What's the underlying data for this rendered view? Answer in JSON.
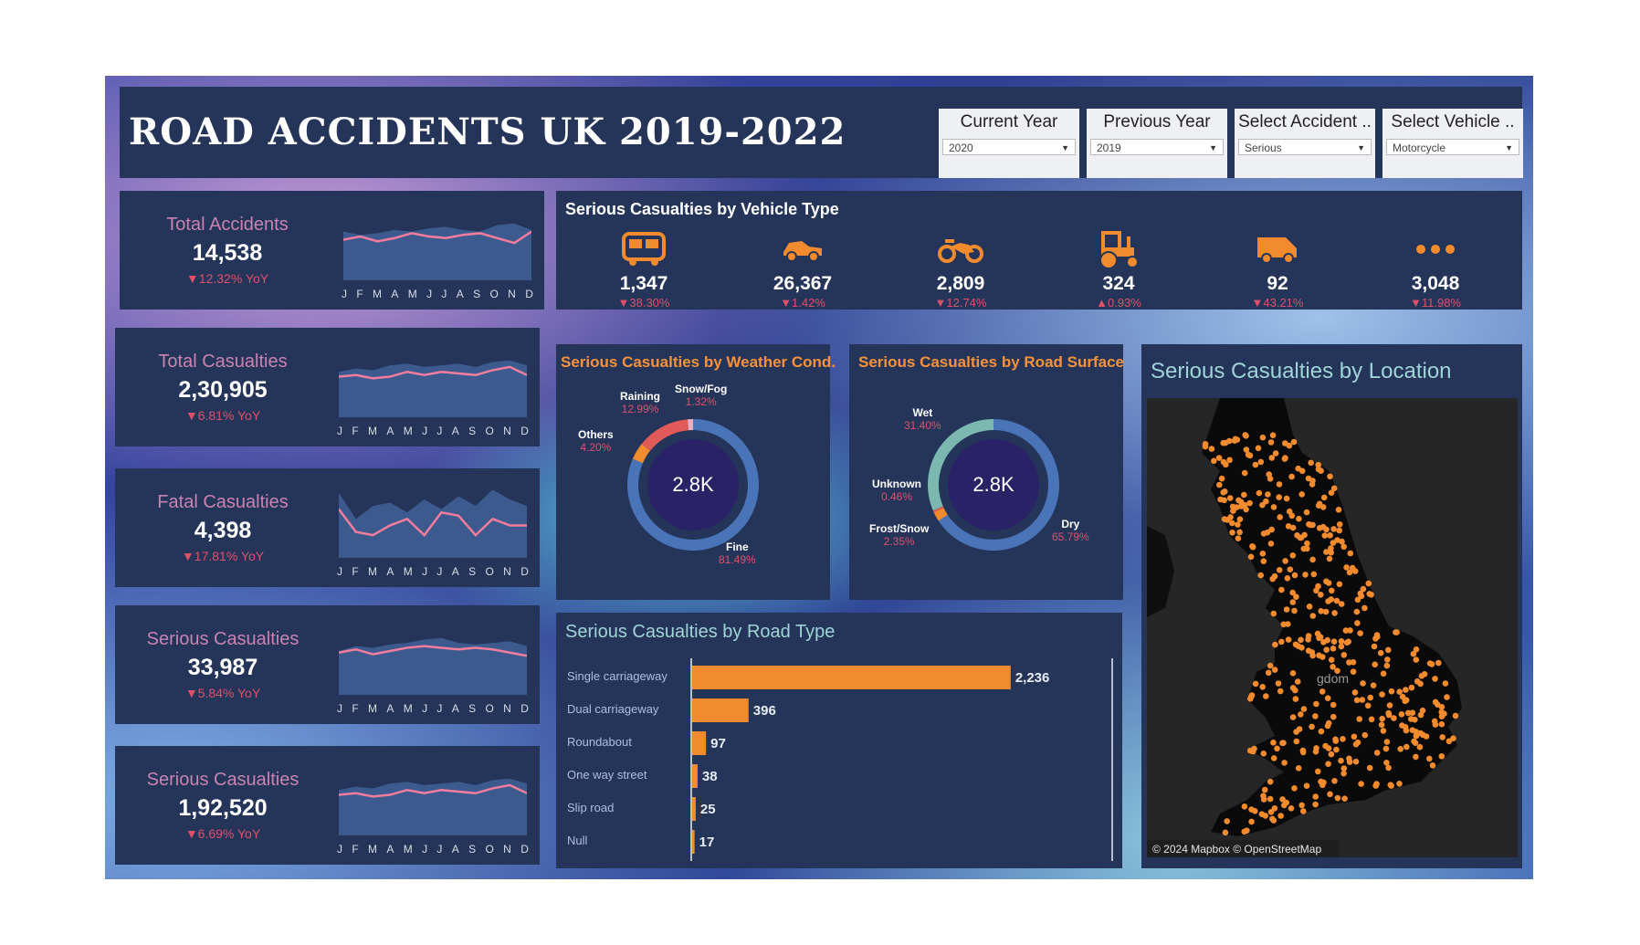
{
  "header": {
    "title": "ROAD ACCIDENTS UK 2019-2022"
  },
  "filters": [
    {
      "label": "Current Year",
      "value": "2020"
    },
    {
      "label": "Previous Year",
      "value": "2019"
    },
    {
      "label": "Select Accident ..",
      "value": "Serious"
    },
    {
      "label": "Select Vehicle ..",
      "value": "Motorcycle"
    }
  ],
  "months": [
    "J",
    "F",
    "M",
    "A",
    "M",
    "J",
    "J",
    "A",
    "S",
    "O",
    "N",
    "D"
  ],
  "kpis": [
    {
      "name": "Total Accidents",
      "value": "14,538",
      "yoy": "▼12.32% YoY",
      "current": [
        55,
        57,
        54,
        56,
        59,
        57,
        56,
        58,
        59,
        56,
        53,
        60
      ],
      "previous": [
        60,
        58,
        59,
        61,
        60,
        62,
        63,
        61,
        60,
        64,
        65,
        61
      ]
    },
    {
      "name": "Total Casualties",
      "value": "2,30,905",
      "yoy": "▼6.81% YoY",
      "current": [
        55,
        56,
        54,
        55,
        58,
        56,
        58,
        57,
        56,
        59,
        61,
        56
      ],
      "previous": [
        58,
        60,
        59,
        62,
        63,
        61,
        62,
        63,
        61,
        64,
        65,
        62
      ]
    },
    {
      "name": "Fatal Casualties",
      "value": "4,398",
      "yoy": "▼17.81% YoY",
      "current": [
        60,
        46,
        44,
        50,
        54,
        44,
        58,
        56,
        44,
        54,
        50,
        50
      ],
      "previous": [
        70,
        54,
        62,
        64,
        58,
        66,
        60,
        68,
        62,
        72,
        66,
        62
      ]
    },
    {
      "name": "Serious Casualties",
      "value": "33,987",
      "yoy": "▼5.84% YoY",
      "current": [
        56,
        58,
        55,
        57,
        59,
        60,
        59,
        58,
        59,
        58,
        56,
        54
      ],
      "previous": [
        57,
        60,
        59,
        61,
        62,
        64,
        65,
        62,
        61,
        62,
        63,
        60
      ]
    },
    {
      "name": "Serious Casualties",
      "value": "1,92,520",
      "yoy": "▼6.69% YoY",
      "current": [
        55,
        56,
        54,
        55,
        58,
        56,
        58,
        57,
        56,
        59,
        61,
        56
      ],
      "previous": [
        58,
        60,
        59,
        62,
        63,
        61,
        62,
        63,
        61,
        64,
        65,
        62
      ]
    }
  ],
  "vehicle": {
    "title": "Serious Casualties by Vehicle Type",
    "items": [
      {
        "icon": "bus-icon",
        "value": "1,347",
        "change": "▼38.30%"
      },
      {
        "icon": "car-icon",
        "value": "26,367",
        "change": "▼1.42%"
      },
      {
        "icon": "motorcycle-icon",
        "value": "2,809",
        "change": "▼12.74%"
      },
      {
        "icon": "tractor-icon",
        "value": "324",
        "change": "▲0.93%"
      },
      {
        "icon": "van-icon",
        "value": "92",
        "change": "▼43.21%"
      },
      {
        "icon": "more-icon",
        "value": "3,048",
        "change": "▼11.98%"
      }
    ],
    "icon_color": "#f28a2e"
  },
  "weather": {
    "title": "Serious Casualties by Weather Cond.",
    "center": "2.8K",
    "slices": [
      {
        "name": "Fine",
        "pct": "81.49%",
        "value": 81.49,
        "color": "#4a74b8"
      },
      {
        "name": "Others",
        "pct": "4.20%",
        "value": 4.2,
        "color": "#f28a2e"
      },
      {
        "name": "Raining",
        "pct": "12.99%",
        "value": 12.99,
        "color": "#e05a5a"
      },
      {
        "name": "Snow/Fog",
        "pct": "1.32%",
        "value": 1.32,
        "color": "#e8b0c0"
      }
    ]
  },
  "surface": {
    "title": "Serious Casualties by Road Surface",
    "center": "2.8K",
    "slices": [
      {
        "name": "Dry",
        "pct": "65.79%",
        "value": 65.79,
        "color": "#4a74b8"
      },
      {
        "name": "Frost/Snow",
        "pct": "2.35%",
        "value": 2.35,
        "color": "#f28a2e"
      },
      {
        "name": "Unknown",
        "pct": "0.46%",
        "value": 0.46,
        "color": "#e05a5a"
      },
      {
        "name": "Wet",
        "pct": "31.40%",
        "value": 31.4,
        "color": "#7ab8b0"
      }
    ]
  },
  "location": {
    "title": "Serious Casualties by Location",
    "credit": "© 2024 Mapbox © OpenStreetMap",
    "place_label": "gdom"
  },
  "chart_data": [
    {
      "type": "bar",
      "title": "Serious Casualties by Road Type",
      "categories": [
        "Single carriageway",
        "Dual carriageway",
        "Roundabout",
        "One way street",
        "Slip road",
        "Null"
      ],
      "values": [
        2236,
        396,
        97,
        38,
        25,
        17
      ],
      "value_labels": [
        "2,236",
        "396",
        "97",
        "38",
        "25",
        "17"
      ]
    },
    {
      "type": "pie",
      "title": "Serious Casualties by Weather Cond.",
      "categories": [
        "Fine",
        "Others",
        "Raining",
        "Snow/Fog"
      ],
      "values": [
        81.49,
        4.2,
        12.99,
        1.32
      ]
    },
    {
      "type": "pie",
      "title": "Serious Casualties by Road Surface",
      "categories": [
        "Dry",
        "Frost/Snow",
        "Unknown",
        "Wet"
      ],
      "values": [
        65.79,
        2.35,
        0.46,
        31.4
      ]
    }
  ]
}
